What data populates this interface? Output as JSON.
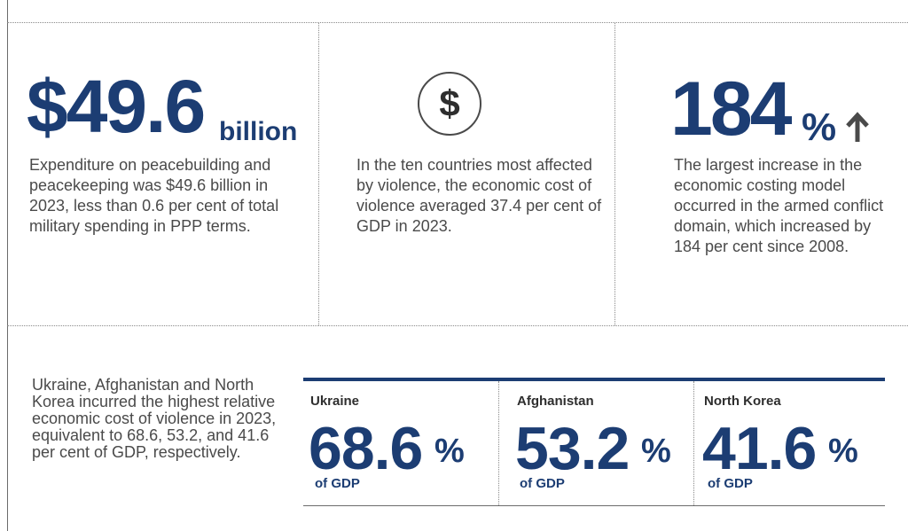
{
  "panel_expenditure": {
    "value": "$49.6",
    "unit": "billion",
    "text": "Expenditure on peacebuilding and peacekeeping was $49.6 billion in 2023, less than 0.6 per cent of total military spending in PPP terms."
  },
  "panel_cost": {
    "icon": "dollar-icon",
    "text": "In the ten countries most affected by violence, the economic cost of violence averaged 37.4 per cent of GDP in 2023."
  },
  "panel_increase": {
    "value": "184",
    "unit": "%",
    "icon": "arrow-up-icon",
    "text": "The largest increase in the economic costing model occurred in the armed conflict domain, which increased by 184 per cent since 2008."
  },
  "panel_countries": {
    "text": "Ukraine, Afghanistan and North Korea incurred the highest relative economic cost of violence in 2023, equivalent to 68.6, 53.2, and 41.6 per cent of GDP, respectively."
  },
  "stats": [
    {
      "country": "Ukraine",
      "value": "68.6",
      "unit": "%",
      "label": "of GDP"
    },
    {
      "country": "Afghanistan",
      "value": "53.2",
      "unit": "%",
      "label": "of GDP"
    },
    {
      "country": "North Korea",
      "value": "41.6",
      "unit": "%",
      "label": "of GDP"
    }
  ],
  "colors": {
    "navy": "#1c3d73",
    "text": "#4a4a4a",
    "rule": "#8a8a8a"
  }
}
